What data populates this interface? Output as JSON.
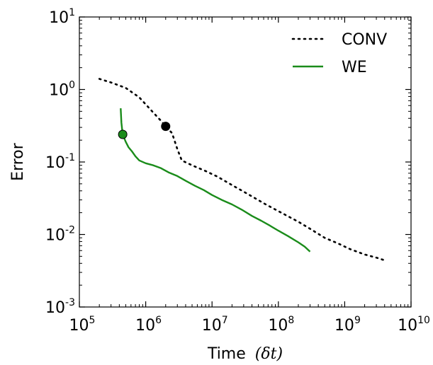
{
  "chart_data": {
    "type": "line",
    "xlabel_main": "Time",
    "xlabel_unit": "(δt)",
    "ylabel": "Error",
    "x_scale": "log",
    "y_scale": "log",
    "xlim": [
      100000,
      10000000000
    ],
    "ylim": [
      0.001,
      10
    ],
    "grid": false,
    "legend_position": "top-right",
    "x_ticks": [
      {
        "base": "10",
        "exp": "5",
        "value": 100000
      },
      {
        "base": "10",
        "exp": "6",
        "value": 1000000
      },
      {
        "base": "10",
        "exp": "7",
        "value": 10000000
      },
      {
        "base": "10",
        "exp": "8",
        "value": 100000000
      },
      {
        "base": "10",
        "exp": "9",
        "value": 1000000000
      },
      {
        "base": "10",
        "exp": "10",
        "value": 10000000000
      }
    ],
    "y_ticks": [
      {
        "base": "10",
        "exp": "-3",
        "value": 0.001
      },
      {
        "base": "10",
        "exp": "-2",
        "value": 0.01
      },
      {
        "base": "10",
        "exp": "-1",
        "value": 0.1
      },
      {
        "base": "10",
        "exp": "0",
        "value": 1
      },
      {
        "base": "10",
        "exp": "1",
        "value": 10
      }
    ],
    "series": [
      {
        "name": "CONV",
        "style": "dotted",
        "color": "#000000",
        "x": [
          200000,
          300000,
          500000,
          800000,
          1200000,
          1700000,
          2000000,
          2500000,
          3000000,
          3500000,
          5000000,
          8000000,
          12000000,
          20000000,
          35000000,
          60000000,
          100000000,
          200000000,
          300000000,
          500000000,
          800000000,
          1200000000,
          2000000000,
          3000000000,
          4000000000
        ],
        "y": [
          1.4,
          1.25,
          1.05,
          0.78,
          0.52,
          0.37,
          0.31,
          0.25,
          0.15,
          0.105,
          0.09,
          0.075,
          0.063,
          0.048,
          0.036,
          0.027,
          0.021,
          0.015,
          0.012,
          0.009,
          0.0075,
          0.0063,
          0.0053,
          0.0048,
          0.0044
        ]
      },
      {
        "name": "WE",
        "style": "solid",
        "color": "#1a8c1a",
        "x": [
          420000,
          430000,
          450000,
          500000,
          550000,
          620000,
          700000,
          800000,
          1000000,
          1300000,
          1700000,
          2200000,
          3000000,
          4000000,
          5500000,
          7500000,
          10000000,
          14000000,
          20000000,
          28000000,
          40000000,
          55000000,
          75000000,
          100000000,
          140000000,
          200000000,
          250000000,
          300000000
        ],
        "y": [
          0.55,
          0.35,
          0.24,
          0.19,
          0.16,
          0.14,
          0.12,
          0.105,
          0.096,
          0.09,
          0.082,
          0.072,
          0.064,
          0.055,
          0.047,
          0.041,
          0.035,
          0.03,
          0.026,
          0.022,
          0.018,
          0.0155,
          0.0132,
          0.0113,
          0.0095,
          0.0078,
          0.0068,
          0.0058
        ]
      }
    ],
    "markers": [
      {
        "series": "CONV",
        "x": 2000000,
        "y": 0.31,
        "color": "#000000"
      },
      {
        "series": "WE",
        "x": 450000,
        "y": 0.24,
        "color": "#1a8c1a"
      }
    ]
  }
}
